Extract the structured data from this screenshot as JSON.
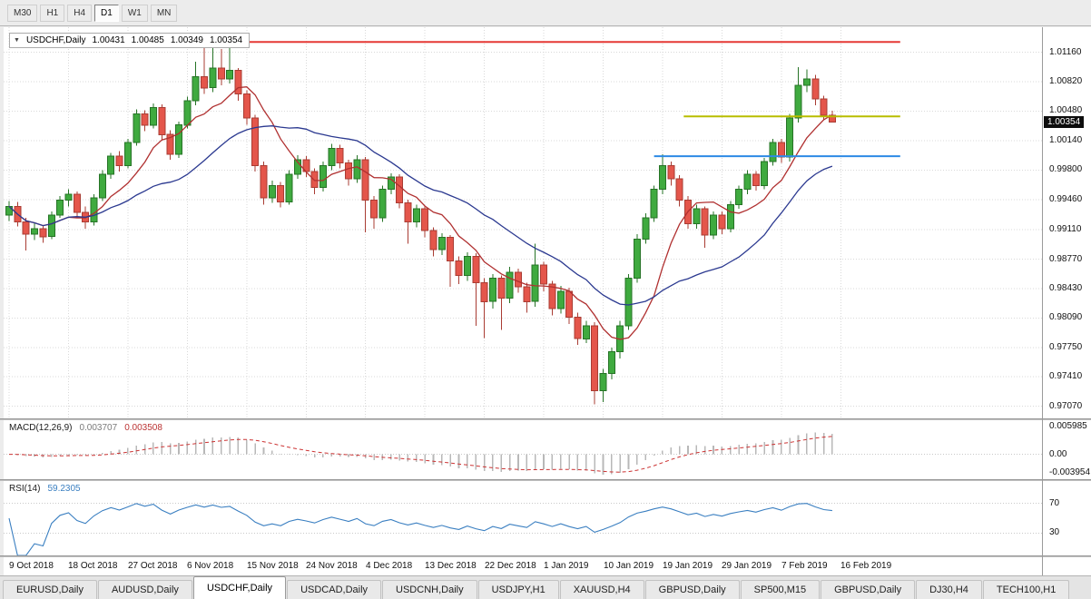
{
  "toolbar": {
    "timeframes": [
      {
        "label": "M30",
        "active": false
      },
      {
        "label": "H1",
        "active": false
      },
      {
        "label": "H4",
        "active": false
      },
      {
        "label": "D1",
        "active": true
      },
      {
        "label": "W1",
        "active": false
      },
      {
        "label": "MN",
        "active": false
      }
    ]
  },
  "chart_data": {
    "type": "candlestick",
    "symbol": "USDCHF",
    "timeframe": "Daily",
    "title": "USDCHF,Daily",
    "ohlc_display": {
      "open": "1.00431",
      "high": "1.00485",
      "low": "1.00349",
      "close": "1.00354"
    },
    "current_price": "1.00354",
    "price_axis_labels": [
      "1.01160",
      "1.00820",
      "1.00480",
      "1.00140",
      "0.99800",
      "0.99460",
      "0.99110",
      "0.98770",
      "0.98430",
      "0.98090",
      "0.97750",
      "0.97410",
      "0.97070"
    ],
    "price_scale": {
      "top": 1.0145,
      "bottom": 0.9693
    },
    "date_labels": [
      "9 Oct 2018",
      "18 Oct 2018",
      "27 Oct 2018",
      "6 Nov 2018",
      "15 Nov 2018",
      "24 Nov 2018",
      "4 Dec 2018",
      "13 Dec 2018",
      "22 Dec 2018",
      "1 Jan 2019",
      "10 Jan 2019",
      "19 Jan 2019",
      "29 Jan 2019",
      "7 Feb 2019",
      "16 Feb 2019"
    ],
    "ticks_every": 7,
    "candles": [
      [
        0.9928,
        0.9944,
        0.9921,
        0.9938
      ],
      [
        0.9938,
        0.9943,
        0.9915,
        0.992
      ],
      [
        0.992,
        0.9925,
        0.9887,
        0.9906
      ],
      [
        0.9906,
        0.9919,
        0.9899,
        0.9912
      ],
      [
        0.9912,
        0.9916,
        0.9896,
        0.9903
      ],
      [
        0.9903,
        0.9932,
        0.99,
        0.9928
      ],
      [
        0.9928,
        0.995,
        0.9925,
        0.9945
      ],
      [
        0.9945,
        0.9958,
        0.9938,
        0.9952
      ],
      [
        0.9952,
        0.9955,
        0.9926,
        0.9931
      ],
      [
        0.9931,
        0.9938,
        0.9912,
        0.992
      ],
      [
        0.992,
        0.9952,
        0.9916,
        0.9948
      ],
      [
        0.9948,
        0.998,
        0.9944,
        0.9975
      ],
      [
        0.9975,
        1.0,
        0.997,
        0.9996
      ],
      [
        0.9996,
        1.0002,
        0.9978,
        0.9985
      ],
      [
        0.9985,
        1.0016,
        0.9982,
        1.0012
      ],
      [
        1.0012,
        1.005,
        1.0008,
        1.0045
      ],
      [
        1.0045,
        1.0049,
        1.0025,
        1.0032
      ],
      [
        1.0032,
        1.0057,
        1.0028,
        1.0052
      ],
      [
        1.0052,
        1.0056,
        1.0015,
        1.0021
      ],
      [
        1.0021,
        1.0026,
        0.9992,
        0.9998
      ],
      [
        0.9998,
        1.0036,
        0.9994,
        1.0032
      ],
      [
        1.0032,
        1.0065,
        1.0028,
        1.006
      ],
      [
        1.006,
        1.0105,
        1.0055,
        1.0088
      ],
      [
        1.0088,
        1.0122,
        1.0068,
        1.0075
      ],
      [
        1.0075,
        1.0128,
        1.007,
        1.0098
      ],
      [
        1.0098,
        1.012,
        1.0078,
        1.0085
      ],
      [
        1.0085,
        1.0125,
        1.008,
        1.0095
      ],
      [
        1.0095,
        1.0098,
        1.006,
        1.0068
      ],
      [
        1.0068,
        1.0072,
        1.0032,
        1.004
      ],
      [
        1.004,
        1.0044,
        0.9978,
        0.9985
      ],
      [
        0.9985,
        0.999,
        0.994,
        0.9948
      ],
      [
        0.9948,
        0.9968,
        0.9942,
        0.9962
      ],
      [
        0.9962,
        0.9966,
        0.9937,
        0.9943
      ],
      [
        0.9943,
        0.998,
        0.994,
        0.9975
      ],
      [
        0.9975,
        0.9997,
        0.997,
        0.9992
      ],
      [
        0.9992,
        0.9996,
        0.9972,
        0.9978
      ],
      [
        0.9978,
        0.9982,
        0.9952,
        0.996
      ],
      [
        0.996,
        0.999,
        0.9955,
        0.9985
      ],
      [
        0.9985,
        1.001,
        0.998,
        1.0005
      ],
      [
        1.0005,
        1.0009,
        0.9982,
        0.9988
      ],
      [
        0.9988,
        0.9992,
        0.9962,
        0.997
      ],
      [
        0.997,
        0.9997,
        0.9965,
        0.9992
      ],
      [
        0.9992,
        0.9995,
        0.9908,
        0.9945
      ],
      [
        0.9945,
        0.995,
        0.9912,
        0.9925
      ],
      [
        0.9925,
        0.9962,
        0.992,
        0.9958
      ],
      [
        0.9958,
        0.9976,
        0.9952,
        0.9972
      ],
      [
        0.9972,
        0.9975,
        0.9936,
        0.9942
      ],
      [
        0.9942,
        0.9946,
        0.9895,
        0.992
      ],
      [
        0.992,
        0.994,
        0.9914,
        0.9935
      ],
      [
        0.9935,
        0.9938,
        0.9902,
        0.991
      ],
      [
        0.991,
        0.9914,
        0.988,
        0.9888
      ],
      [
        0.9888,
        0.9907,
        0.9882,
        0.9902
      ],
      [
        0.9902,
        0.9905,
        0.9845,
        0.9875
      ],
      [
        0.9875,
        0.988,
        0.9848,
        0.9858
      ],
      [
        0.9858,
        0.9885,
        0.9852,
        0.988
      ],
      [
        0.988,
        0.9884,
        0.98,
        0.985
      ],
      [
        0.985,
        0.9855,
        0.9786,
        0.9828
      ],
      [
        0.9828,
        0.986,
        0.982,
        0.9855
      ],
      [
        0.9855,
        0.9858,
        0.9795,
        0.9832
      ],
      [
        0.9832,
        0.9868,
        0.9826,
        0.9862
      ],
      [
        0.9862,
        0.9866,
        0.9838,
        0.9845
      ],
      [
        0.9845,
        0.985,
        0.9815,
        0.9828
      ],
      [
        0.9828,
        0.9895,
        0.9822,
        0.987
      ],
      [
        0.987,
        0.9874,
        0.984,
        0.9848
      ],
      [
        0.9848,
        0.9852,
        0.9812,
        0.982
      ],
      [
        0.982,
        0.9846,
        0.9814,
        0.984
      ],
      [
        0.984,
        0.9844,
        0.9802,
        0.981
      ],
      [
        0.981,
        0.9815,
        0.9778,
        0.9785
      ],
      [
        0.9785,
        0.9806,
        0.978,
        0.98
      ],
      [
        0.98,
        0.9804,
        0.9709,
        0.9725
      ],
      [
        0.9725,
        0.975,
        0.9712,
        0.9745
      ],
      [
        0.9745,
        0.9775,
        0.9738,
        0.977
      ],
      [
        0.977,
        0.9806,
        0.9762,
        0.98
      ],
      [
        0.98,
        0.986,
        0.9795,
        0.9855
      ],
      [
        0.9855,
        0.9906,
        0.985,
        0.99
      ],
      [
        0.99,
        0.993,
        0.9895,
        0.9925
      ],
      [
        0.9925,
        0.9962,
        0.992,
        0.9958
      ],
      [
        0.9958,
        0.9998,
        0.9952,
        0.9985
      ],
      [
        0.9985,
        0.999,
        0.9962,
        0.997
      ],
      [
        0.997,
        0.9974,
        0.9938,
        0.9945
      ],
      [
        0.9945,
        0.995,
        0.9912,
        0.9918
      ],
      [
        0.9918,
        0.994,
        0.9912,
        0.9935
      ],
      [
        0.9935,
        0.9938,
        0.989,
        0.9905
      ],
      [
        0.9905,
        0.9932,
        0.99,
        0.9928
      ],
      [
        0.9928,
        0.9932,
        0.9906,
        0.9912
      ],
      [
        0.9912,
        0.9944,
        0.9908,
        0.994
      ],
      [
        0.994,
        0.9962,
        0.9935,
        0.9958
      ],
      [
        0.9958,
        0.998,
        0.9952,
        0.9975
      ],
      [
        0.9975,
        0.9979,
        0.9956,
        0.9962
      ],
      [
        0.9962,
        0.9994,
        0.9958,
        0.999
      ],
      [
        0.999,
        1.0016,
        0.9985,
        1.0012
      ],
      [
        1.0012,
        1.0016,
        0.9988,
        0.9995
      ],
      [
        0.9995,
        1.0045,
        0.999,
        1.004
      ],
      [
        1.004,
        1.0099,
        1.0035,
        1.0078
      ],
      [
        1.0078,
        1.0096,
        1.007,
        1.0085
      ],
      [
        1.0085,
        1.009,
        1.0055,
        1.0062
      ],
      [
        1.0062,
        1.0066,
        1.0038,
        1.0043
      ],
      [
        1.00431,
        1.00485,
        1.00349,
        1.00354
      ]
    ],
    "moving_averages": [
      {
        "name": "ma-fast",
        "period": 8,
        "color": "#b03030"
      },
      {
        "name": "ma-slow",
        "period": 21,
        "color": "#2b3990"
      }
    ],
    "hlines": [
      {
        "name": "resistance-line",
        "price": 1.0128,
        "i1": 25.5,
        "i2": 105,
        "color": "#e53935",
        "width": 2
      },
      {
        "name": "breakout-line",
        "price": 1.0042,
        "i1": 79.5,
        "i2": 105,
        "color": "#b8bd00",
        "width": 2
      },
      {
        "name": "support-line",
        "price": 0.9996,
        "i1": 76,
        "i2": 105,
        "color": "#2d8ae5",
        "width": 2
      }
    ],
    "colors": {
      "bull": "#3faa3f",
      "bull_border": "#267326",
      "bear": "#e4564b",
      "bear_border": "#a93c33",
      "grid": "#d9d9d9",
      "axis_text": "#111111"
    }
  },
  "macd": {
    "label": "MACD(12,26,9)",
    "value_main": "0.003707",
    "value_signal": "0.003508",
    "axis_labels": [
      "0.005985",
      "0.00",
      "-0.003954"
    ],
    "scale": {
      "max": 0.007,
      "min": -0.005
    },
    "fast": 12,
    "slow": 26,
    "signal": 9,
    "colors": {
      "histogram": "#b8b8b8",
      "signal": "#cc3333"
    }
  },
  "rsi": {
    "label": "RSI(14)",
    "value": "59.2305",
    "period": 14,
    "levels": [
      "70",
      "30"
    ],
    "color": "#3a7fc1"
  },
  "tabs": [
    {
      "label": "EURUSD,Daily",
      "active": false
    },
    {
      "label": "AUDUSD,Daily",
      "active": false
    },
    {
      "label": "USDCHF,Daily",
      "active": true
    },
    {
      "label": "USDCAD,Daily",
      "active": false
    },
    {
      "label": "USDCNH,Daily",
      "active": false
    },
    {
      "label": "USDJPY,H1",
      "active": false
    },
    {
      "label": "XAUUSD,H4",
      "active": false
    },
    {
      "label": "GBPUSD,Daily",
      "active": false
    },
    {
      "label": "SP500,M15",
      "active": false
    },
    {
      "label": "GBPUSD,Daily",
      "active": false
    },
    {
      "label": "DJ30,H4",
      "active": false
    },
    {
      "label": "TECH100,H1",
      "active": false
    }
  ]
}
